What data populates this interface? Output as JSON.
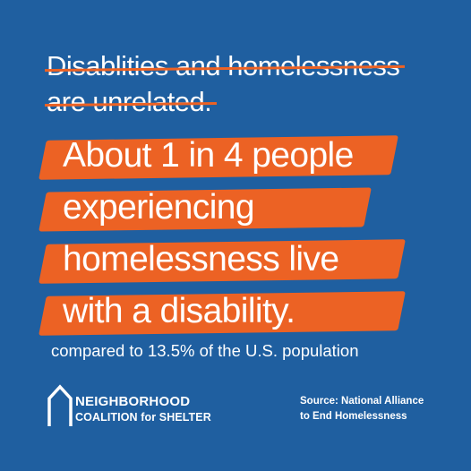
{
  "myth": {
    "line1": "Disablities and homelessness",
    "line2": "are unrelated."
  },
  "fact": {
    "lines": [
      "About 1 in 4 people",
      "experiencing",
      "homelessness live",
      "with a disability."
    ]
  },
  "comparison": "compared to 13.5% of the U.S. population",
  "logo": {
    "line1": "NEIGHBORHOOD",
    "line2": "COALITION for SHELTER",
    "icon": "house-outline-icon"
  },
  "source": {
    "line1": "Source: National Alliance",
    "line2": "to End Homelessness"
  },
  "colors": {
    "background": "#1f5fa0",
    "accent": "#ec6224",
    "text": "#ffffff"
  }
}
